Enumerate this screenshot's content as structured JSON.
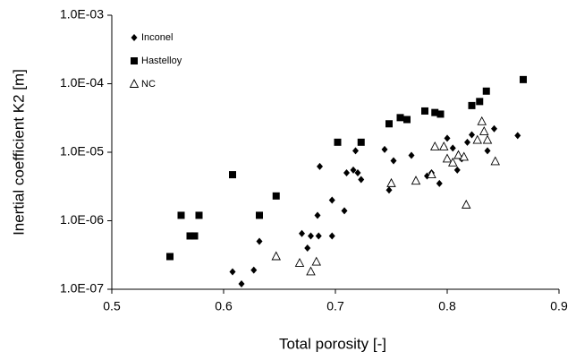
{
  "chart_data": {
    "type": "scatter",
    "xlabel": "Total porosity [-]",
    "ylabel": "Inertial coefficient K2 [m]",
    "xlim": [
      0.5,
      0.9
    ],
    "xticks": [
      0.5,
      0.6,
      0.7,
      0.8,
      0.9
    ],
    "ylim": [
      1e-07,
      0.001
    ],
    "log_y": true,
    "yticks": [
      {
        "value": 1e-07,
        "label": "1.0E-07"
      },
      {
        "value": 1e-06,
        "label": "1.0E-06"
      },
      {
        "value": 1e-05,
        "label": "1.0E-05"
      },
      {
        "value": 0.0001,
        "label": "1.0E-04"
      },
      {
        "value": 0.001,
        "label": "1.0E-03"
      }
    ],
    "grid": false,
    "legend": "upper-left",
    "series": [
      {
        "name": "Inconel",
        "color": "#000000",
        "marker": "diamond",
        "x": [
          0.608,
          0.616,
          0.627,
          0.632,
          0.67,
          0.675,
          0.678,
          0.685,
          0.684,
          0.697,
          0.697,
          0.686,
          0.708,
          0.71,
          0.716,
          0.718,
          0.72,
          0.723,
          0.744,
          0.748,
          0.752,
          0.768,
          0.782,
          0.786,
          0.793,
          0.797,
          0.8,
          0.805,
          0.809,
          0.813,
          0.818,
          0.822,
          0.836,
          0.842,
          0.863
        ],
        "values": [
          1.8e-07,
          1.2e-07,
          1.9e-07,
          5e-07,
          6.5e-07,
          4e-07,
          6e-07,
          6e-07,
          1.2e-06,
          2e-06,
          6e-07,
          6.2e-06,
          1.4e-06,
          5e-06,
          5.5e-06,
          1.05e-05,
          5e-06,
          4e-06,
          1.1e-05,
          2.8e-06,
          7.5e-06,
          9e-06,
          4.5e-06,
          5e-06,
          3.5e-06,
          1.2e-05,
          1.6e-05,
          1.15e-05,
          5.5e-06,
          8e-06,
          1.4e-05,
          1.8e-05,
          1.05e-05,
          2.2e-05,
          1.75e-05
        ]
      },
      {
        "name": "Hastelloy",
        "color": "#000000",
        "marker": "square",
        "x": [
          0.552,
          0.562,
          0.57,
          0.574,
          0.578,
          0.608,
          0.632,
          0.647,
          0.702,
          0.723,
          0.748,
          0.758,
          0.764,
          0.78,
          0.789,
          0.794,
          0.822,
          0.829,
          0.835,
          0.868
        ],
        "values": [
          3e-07,
          1.2e-06,
          6e-07,
          6e-07,
          1.2e-06,
          4.7e-06,
          1.2e-06,
          2.3e-06,
          1.4e-05,
          1.4e-05,
          2.6e-05,
          3.2e-05,
          3e-05,
          4e-05,
          3.8e-05,
          3.6e-05,
          4.8e-05,
          5.5e-05,
          7.8e-05,
          0.000115
        ]
      },
      {
        "name": "NC",
        "color": "#000000",
        "marker": "triangle-open",
        "x": [
          0.647,
          0.668,
          0.678,
          0.683,
          0.75,
          0.772,
          0.786,
          0.789,
          0.797,
          0.8,
          0.805,
          0.81,
          0.817,
          0.827,
          0.831,
          0.833,
          0.836,
          0.843,
          0.815
        ],
        "values": [
          3e-07,
          2.4e-07,
          1.8e-07,
          2.5e-07,
          3.5e-06,
          3.8e-06,
          4.7e-06,
          1.2e-05,
          1.2e-05,
          8e-06,
          7e-06,
          9e-06,
          1.7e-06,
          1.5e-05,
          2.8e-05,
          2e-05,
          1.5e-05,
          7.3e-06,
          8.5e-06
        ]
      }
    ]
  }
}
